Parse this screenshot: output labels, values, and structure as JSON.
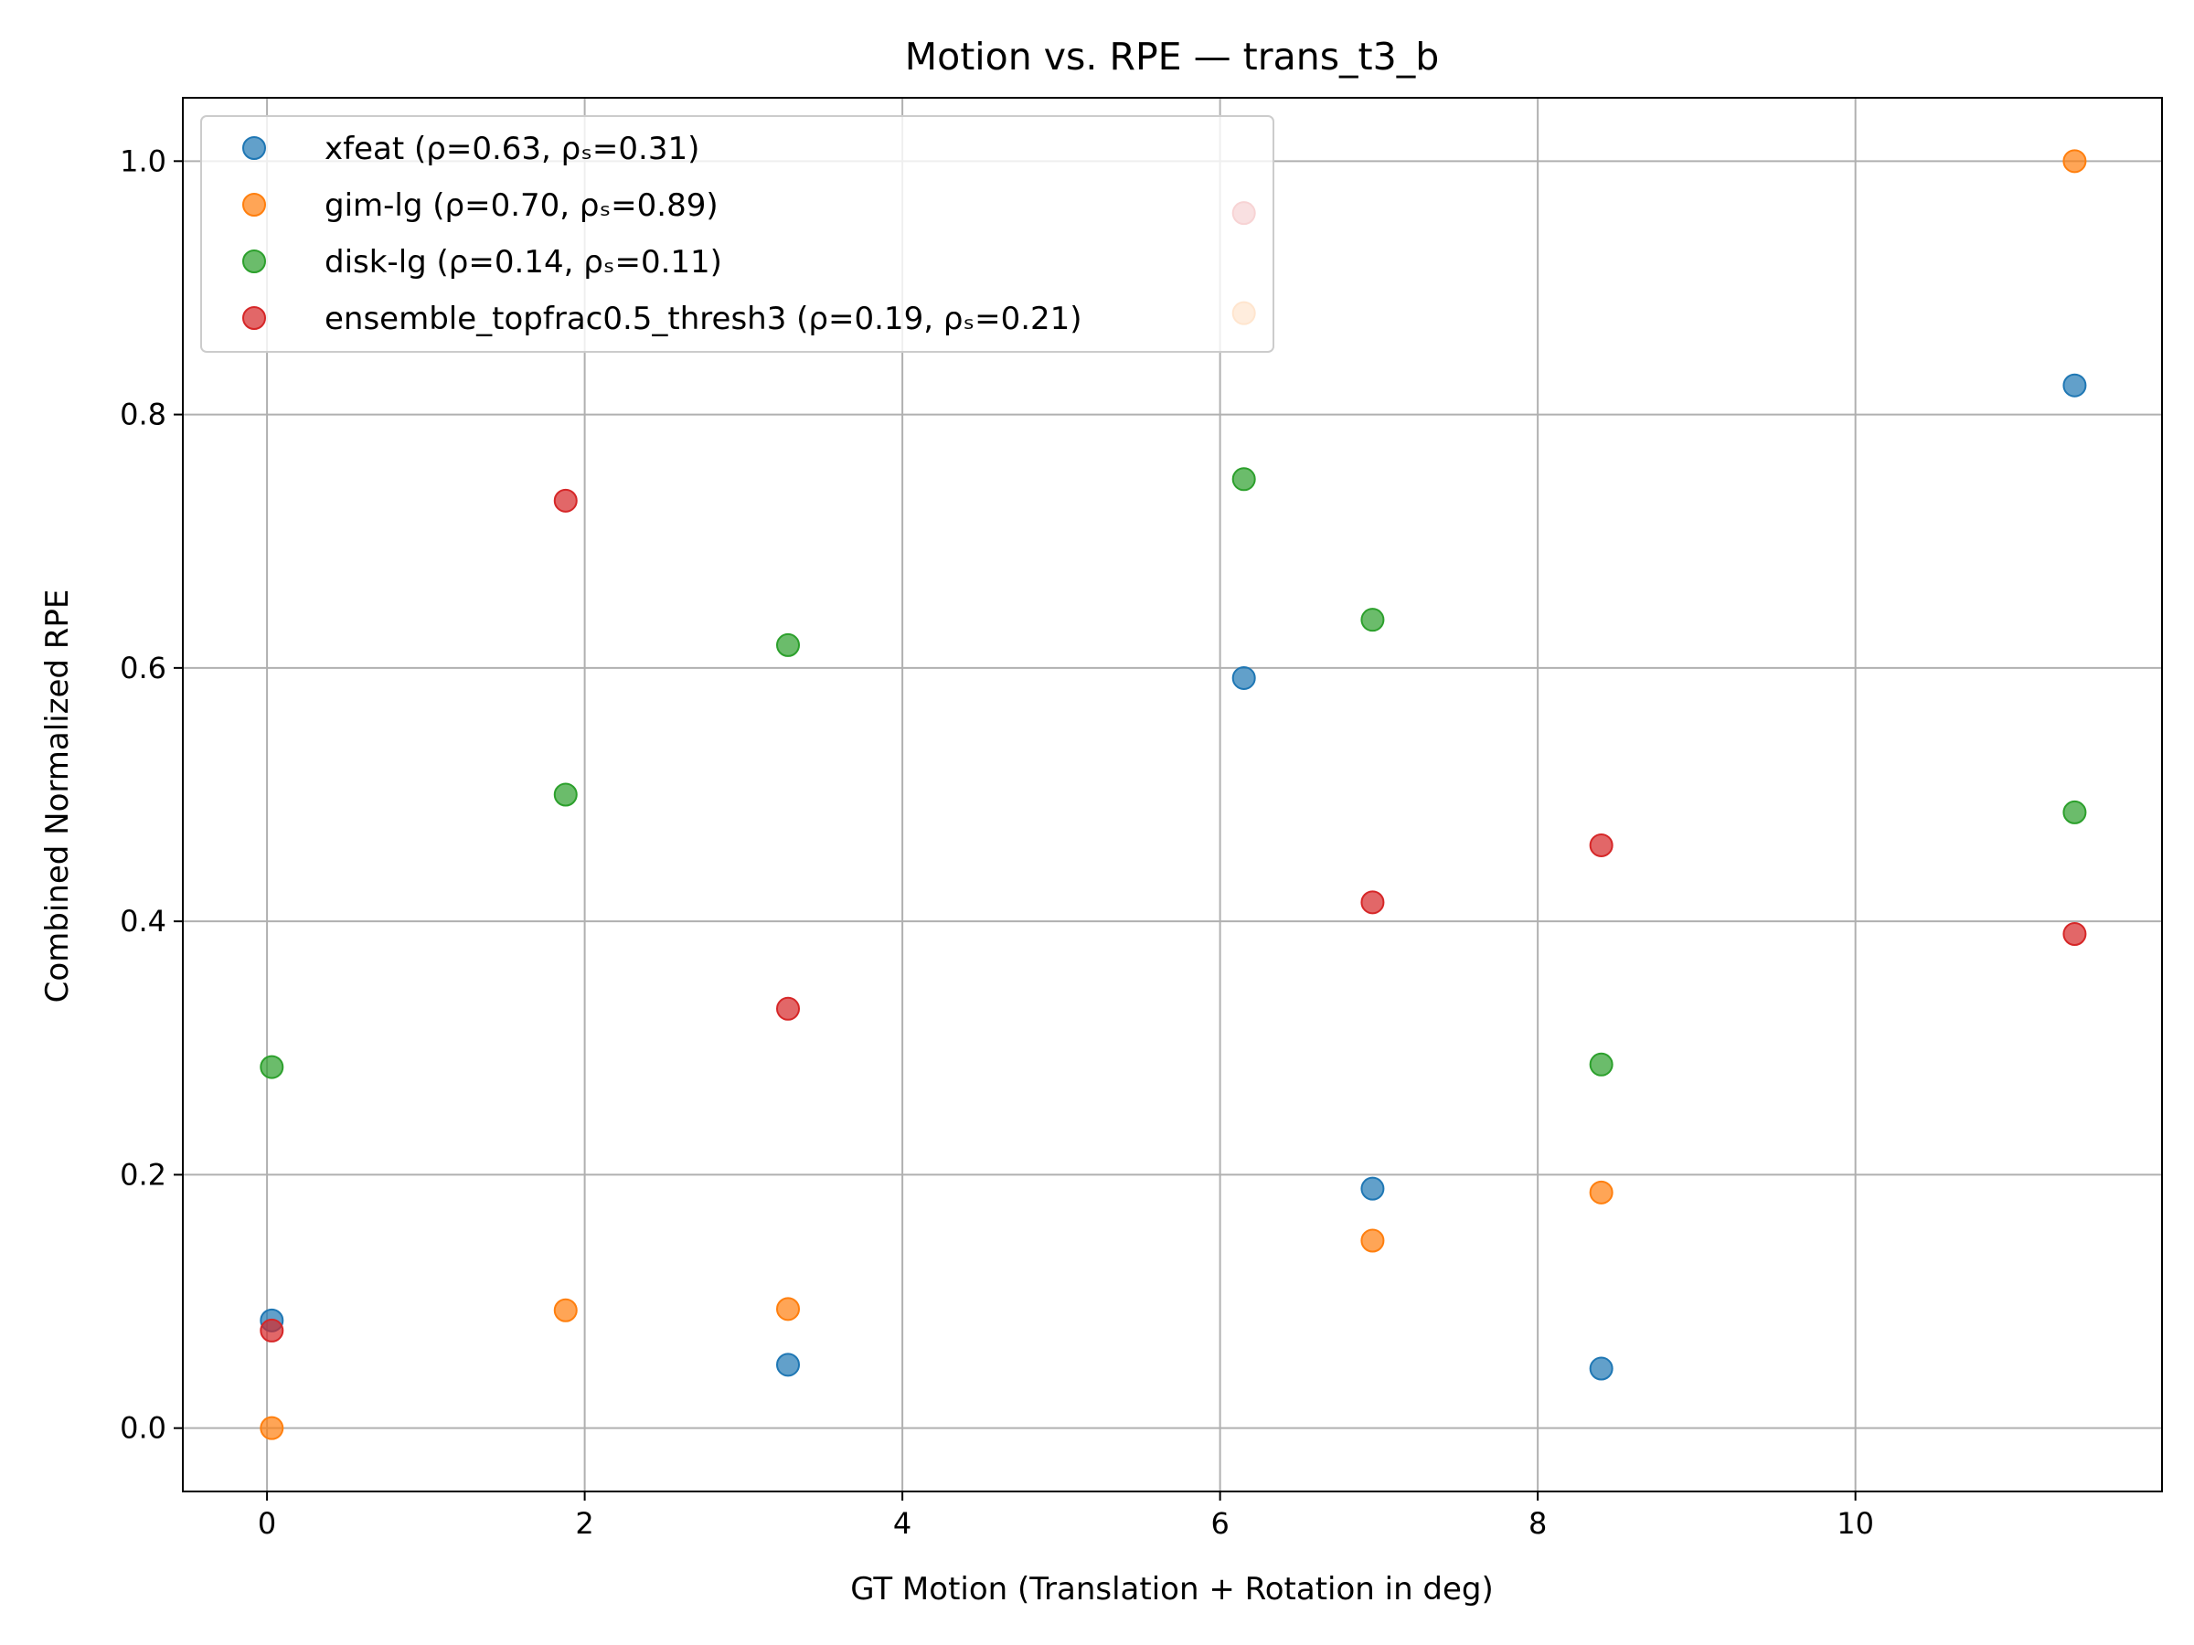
{
  "chart_data": {
    "type": "scatter",
    "title": "Motion vs. RPE — trans_t3_b",
    "xlabel": "GT Motion (Translation + Rotation in deg)",
    "ylabel": "Combined Normalized RPE",
    "xlim": [
      -0.53,
      11.93
    ],
    "ylim": [
      -0.05,
      1.05
    ],
    "xticks": [
      0,
      2,
      4,
      6,
      8,
      10
    ],
    "yticks": [
      0.0,
      0.2,
      0.4,
      0.6,
      0.8,
      1.0
    ],
    "xtick_labels": [
      "0",
      "2",
      "4",
      "6",
      "8",
      "10"
    ],
    "ytick_labels": [
      "0.0",
      "0.2",
      "0.4",
      "0.6",
      "0.8",
      "1.0"
    ],
    "grid": true,
    "legend_position": "upper-left",
    "x": [
      0.03,
      1.88,
      3.28,
      6.15,
      6.96,
      8.4,
      11.38
    ],
    "series": [
      {
        "name": "xfeat (ρ=0.63, ρₛ=0.31)",
        "color": "#1f77b4",
        "values": [
          0.085,
          null,
          0.05,
          0.592,
          0.189,
          0.047,
          0.823
        ]
      },
      {
        "name": "gim-lg (ρ=0.70, ρₛ=0.89)",
        "color": "#ff7f0e",
        "values": [
          0.0,
          0.093,
          0.094,
          0.88,
          0.148,
          0.186,
          1.0
        ]
      },
      {
        "name": "disk-lg (ρ=0.14, ρₛ=0.11)",
        "color": "#2ca02c",
        "values": [
          0.285,
          0.5,
          0.618,
          0.749,
          0.638,
          0.287,
          0.486
        ]
      },
      {
        "name": "ensemble_topfrac0.5_thresh3 (ρ=0.19, ρₛ=0.21)",
        "color": "#d62728",
        "values": [
          0.077,
          0.732,
          0.331,
          0.959,
          0.415,
          0.46,
          0.39
        ]
      }
    ]
  }
}
